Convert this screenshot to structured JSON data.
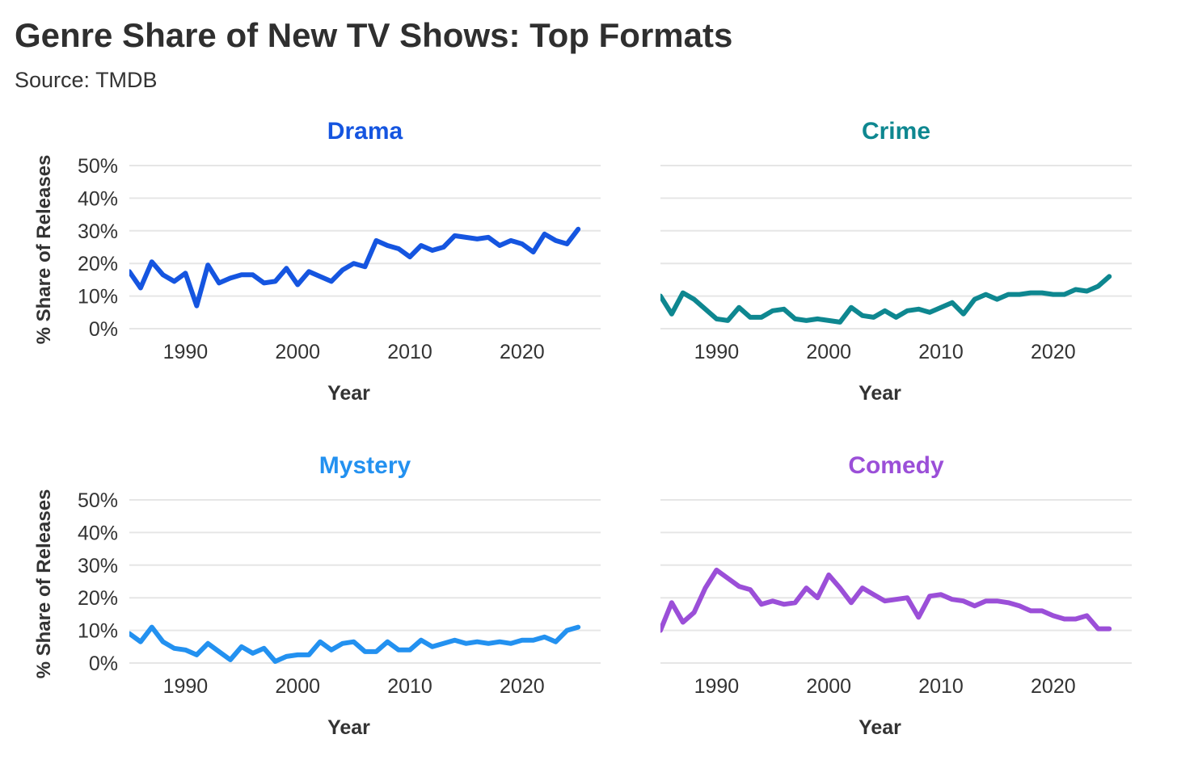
{
  "title": "Genre Share of New TV Shows: Top Formats",
  "subtitle": "Source: TMDB",
  "chart_data": [
    {
      "type": "line",
      "title": "Drama",
      "color": "#1555e0",
      "xlabel": "Year",
      "ylabel": "% Share of Releases",
      "xlim": [
        1985,
        2027
      ],
      "ylim": [
        0,
        50
      ],
      "x_ticks": [
        1990,
        2000,
        2010,
        2020
      ],
      "y_ticks": [
        "0%",
        "10%",
        "20%",
        "30%",
        "40%",
        "50%"
      ],
      "show_y_tick_labels": true,
      "x": [
        1985,
        1986,
        1987,
        1988,
        1989,
        1990,
        1991,
        1992,
        1993,
        1994,
        1995,
        1996,
        1997,
        1998,
        1999,
        2000,
        2001,
        2002,
        2003,
        2004,
        2005,
        2006,
        2007,
        2008,
        2009,
        2010,
        2011,
        2012,
        2013,
        2014,
        2015,
        2016,
        2017,
        2018,
        2019,
        2020,
        2021,
        2022,
        2023,
        2024,
        2025
      ],
      "values": [
        17.5,
        12.5,
        20.5,
        16.5,
        14.5,
        17,
        7,
        19.5,
        14,
        15.5,
        16.5,
        16.5,
        14,
        14.5,
        18.5,
        13.5,
        17.5,
        16,
        14.5,
        18,
        20,
        19,
        27,
        25.5,
        24.5,
        22,
        25.5,
        24,
        25,
        28.5,
        28,
        27.5,
        28,
        25.5,
        27,
        26,
        23.5,
        29,
        27,
        26,
        30.5
      ]
    },
    {
      "type": "line",
      "title": "Crime",
      "color": "#0e8790",
      "xlabel": "Year",
      "ylabel": "",
      "xlim": [
        1985,
        2027
      ],
      "ylim": [
        0,
        50
      ],
      "x_ticks": [
        1990,
        2000,
        2010,
        2020
      ],
      "y_ticks": [],
      "show_y_tick_labels": false,
      "x": [
        1985,
        1986,
        1987,
        1988,
        1989,
        1990,
        1991,
        1992,
        1993,
        1994,
        1995,
        1996,
        1997,
        1998,
        1999,
        2000,
        2001,
        2002,
        2003,
        2004,
        2005,
        2006,
        2007,
        2008,
        2009,
        2010,
        2011,
        2012,
        2013,
        2014,
        2015,
        2016,
        2017,
        2018,
        2019,
        2020,
        2021,
        2022,
        2023,
        2024,
        2025
      ],
      "values": [
        10,
        4.5,
        11,
        9,
        6,
        3,
        2.5,
        6.5,
        3.5,
        3.5,
        5.5,
        6,
        3,
        2.5,
        3,
        2.5,
        2,
        6.5,
        4,
        3.5,
        5.5,
        3.5,
        5.5,
        6,
        5,
        6.5,
        8,
        4.5,
        9,
        10.5,
        9,
        10.5,
        10.5,
        11,
        11,
        10.5,
        10.5,
        12,
        11.5,
        13,
        16
      ]
    },
    {
      "type": "line",
      "title": "Mystery",
      "color": "#2391f0",
      "xlabel": "Year",
      "ylabel": "% Share of Releases",
      "xlim": [
        1985,
        2027
      ],
      "ylim": [
        0,
        50
      ],
      "x_ticks": [
        1990,
        2000,
        2010,
        2020
      ],
      "y_ticks": [
        "0%",
        "10%",
        "20%",
        "30%",
        "40%",
        "50%"
      ],
      "show_y_tick_labels": true,
      "x": [
        1985,
        1986,
        1987,
        1988,
        1989,
        1990,
        1991,
        1992,
        1993,
        1994,
        1995,
        1996,
        1997,
        1998,
        1999,
        2000,
        2001,
        2002,
        2003,
        2004,
        2005,
        2006,
        2007,
        2008,
        2009,
        2010,
        2011,
        2012,
        2013,
        2014,
        2015,
        2016,
        2017,
        2018,
        2019,
        2020,
        2021,
        2022,
        2023,
        2024,
        2025
      ],
      "values": [
        9,
        6.5,
        11,
        6.5,
        4.5,
        4,
        2.5,
        6,
        3.5,
        1,
        5,
        3,
        4.5,
        0.5,
        2,
        2.5,
        2.5,
        6.5,
        4,
        6,
        6.5,
        3.5,
        3.5,
        6.5,
        4,
        4,
        7,
        5,
        6,
        7,
        6,
        6.5,
        6,
        6.5,
        6,
        7,
        7,
        8,
        6.5,
        10,
        11
      ]
    },
    {
      "type": "line",
      "title": "Comedy",
      "color": "#9b4fd8",
      "xlabel": "Year",
      "ylabel": "",
      "xlim": [
        1985,
        2027
      ],
      "ylim": [
        0,
        50
      ],
      "x_ticks": [
        1990,
        2000,
        2010,
        2020
      ],
      "y_ticks": [],
      "show_y_tick_labels": false,
      "x": [
        1985,
        1986,
        1987,
        1988,
        1989,
        1990,
        1991,
        1992,
        1993,
        1994,
        1995,
        1996,
        1997,
        1998,
        1999,
        2000,
        2001,
        2002,
        2003,
        2004,
        2005,
        2006,
        2007,
        2008,
        2009,
        2010,
        2011,
        2012,
        2013,
        2014,
        2015,
        2016,
        2017,
        2018,
        2019,
        2020,
        2021,
        2022,
        2023,
        2024,
        2025
      ],
      "values": [
        10,
        18.5,
        12.5,
        15.5,
        23,
        28.5,
        26,
        23.5,
        22.5,
        18,
        19,
        18,
        18.5,
        23,
        20,
        27,
        23,
        18.5,
        23,
        21,
        19,
        19.5,
        20,
        14,
        20.5,
        21,
        19.5,
        19,
        17.5,
        19,
        19,
        18.5,
        17.5,
        16,
        16,
        14.5,
        13.5,
        13.5,
        14.5,
        10.5,
        10.5
      ]
    }
  ]
}
